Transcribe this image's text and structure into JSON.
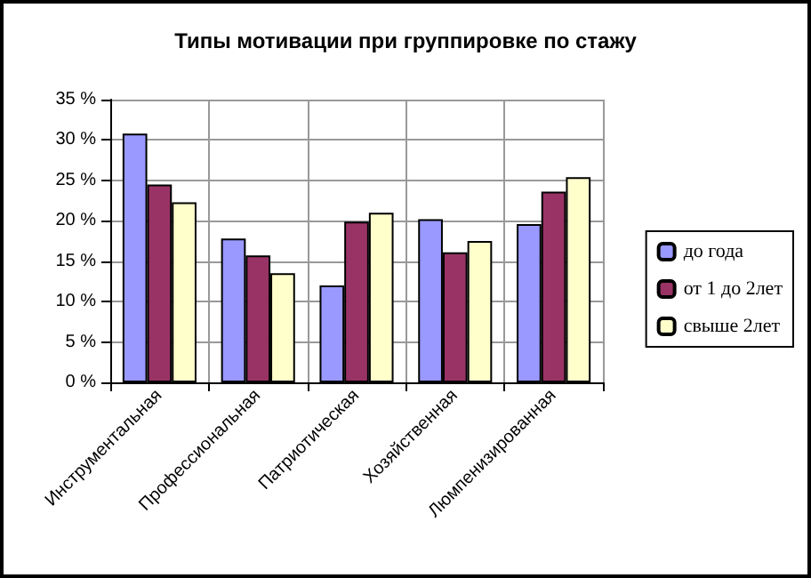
{
  "chart_data": {
    "type": "bar",
    "title": "Типы мотивации при группировке по стажу",
    "categories": [
      "Инструментальная",
      "Профессиональная",
      "Патриотическая",
      "Хозяйственная",
      "Люмпенизированная"
    ],
    "series": [
      {
        "name": "до года",
        "color": "#9999ff",
        "values": [
          30.8,
          17.8,
          12.0,
          20.2,
          19.6
        ]
      },
      {
        "name": "от 1 до 2лет",
        "color": "#993366",
        "values": [
          24.5,
          15.7,
          19.9,
          16.1,
          23.6
        ]
      },
      {
        "name": "свыше 2лет",
        "color": "#ffffcc",
        "values": [
          22.3,
          13.5,
          21.0,
          17.5,
          25.4
        ]
      }
    ],
    "ylim": [
      0,
      35
    ],
    "yticks": [
      {
        "value": 0,
        "label": "0 %"
      },
      {
        "value": 5,
        "label": "5 %"
      },
      {
        "value": 10,
        "label": "10 %"
      },
      {
        "value": 15,
        "label": "15 %"
      },
      {
        "value": 20,
        "label": "20 %"
      },
      {
        "value": 25,
        "label": "25 %"
      },
      {
        "value": 30,
        "label": "30 %"
      },
      {
        "value": 35,
        "label": "35 %"
      }
    ],
    "grid": true,
    "legend": "right"
  }
}
